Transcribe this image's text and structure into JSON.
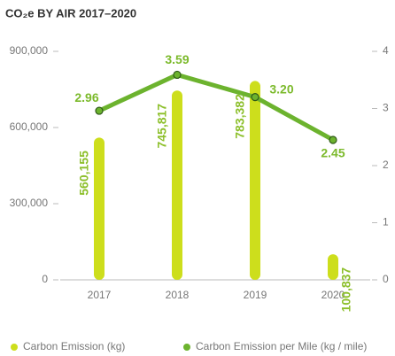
{
  "chart_data": {
    "type": "bar-line",
    "title": "CO₂e BY AIR 2017–2020",
    "categories": [
      "2017",
      "2018",
      "2019",
      "2020"
    ],
    "series": [
      {
        "name": "Carbon Emission (kg)",
        "type": "bar",
        "color": "#cdde1c",
        "values": [
          560155,
          745817,
          783382,
          100837
        ],
        "value_labels": [
          "560,155",
          "745,817",
          "783,382",
          "100,837"
        ]
      },
      {
        "name": "Carbon Emission per Mile (kg / mile)",
        "type": "line",
        "axis": "y2",
        "color": "#6cb32e",
        "values": [
          2.96,
          3.59,
          3.2,
          2.45
        ],
        "value_labels": [
          "2.96",
          "3.59",
          "3.20",
          "2.45"
        ]
      }
    ],
    "ylim": [
      0,
      900000
    ],
    "yticks": [
      0,
      {
        "value": 300000,
        "label": "300,000"
      },
      {
        "value": 600000,
        "label": "600,000"
      },
      {
        "value": 900000,
        "label": "900,000"
      }
    ],
    "y2lim": [
      0,
      4
    ],
    "y2ticks": [
      0,
      1,
      2,
      3,
      4
    ],
    "grid": false,
    "legend": "bottom"
  }
}
